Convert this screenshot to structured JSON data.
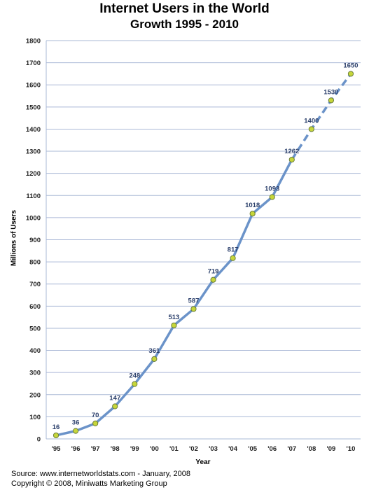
{
  "chart_data": {
    "type": "line",
    "title": "Internet Users in the World",
    "subtitle": "Growth 1995 - 2010",
    "xlabel": "Year",
    "ylabel": "Millions of Users",
    "categories": [
      "'95",
      "'96",
      "'97",
      "'98",
      "'99",
      "'00",
      "'01",
      "'02",
      "'03",
      "'04",
      "'05",
      "'06",
      "'07",
      "'08",
      "'09",
      "'10"
    ],
    "values": [
      16,
      36,
      70,
      147,
      248,
      361,
      513,
      587,
      719,
      817,
      1018,
      1093,
      1262,
      1400,
      1530,
      1650
    ],
    "projected_from_index": 12,
    "ylim": [
      0,
      1800
    ],
    "yticks": [
      0,
      100,
      200,
      300,
      400,
      500,
      600,
      700,
      800,
      900,
      1000,
      1100,
      1200,
      1300,
      1400,
      1500,
      1600,
      1700,
      1800
    ],
    "grid": true,
    "line_color": "#6b93c9",
    "marker_fill": "#c6d63a",
    "gridline_color": "#aab8d6"
  },
  "footer": {
    "source": "Source: www.internetworldstats.com - January, 2008",
    "copyright": "Copyright © 2008, Miniwatts Marketing Group"
  }
}
